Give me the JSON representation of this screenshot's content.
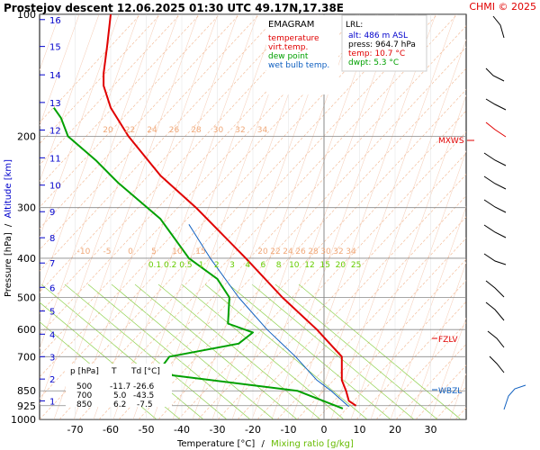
{
  "header": {
    "title": "Prostejov   descent   12.06.2025 01:30 UTC  49.17N,17.38E",
    "copyright": "CHMI © 2025"
  },
  "legend": {
    "title": "EMAGRAM",
    "items": [
      {
        "label": "temperature",
        "color": "#e00000"
      },
      {
        "label": "virt.temp.",
        "color": "#e00000"
      },
      {
        "label": "dew point",
        "color": "#00a000"
      },
      {
        "label": "wet bulb temp.",
        "color": "#1060c0"
      }
    ]
  },
  "lrl": {
    "title": "LRL:",
    "alt": "alt: 486 m ASL",
    "press": "press: 964.7 hPa",
    "temp": "temp: 10.7 °C",
    "dwpt": "dwpt: 5.3 °C"
  },
  "markers": {
    "mxws": "MXWS",
    "fzlv": "FZLV",
    "wbzl": "WBZL"
  },
  "table": {
    "headers": [
      "p [hPa]",
      "T",
      "Td [°C]"
    ],
    "rows": [
      [
        "500",
        "-11.7",
        "-26.6"
      ],
      [
        "700",
        "5.0",
        "-43.5"
      ],
      [
        "850",
        "6.2",
        "-7.5"
      ]
    ]
  },
  "axes": {
    "ylabel_pressure": "Pressure [hPa]",
    "ylabel_sep": "/",
    "ylabel_altitude": "Altitude [km]",
    "xlabel_temp": "Temperature [°C]",
    "xlabel_sep": "/",
    "xlabel_mixing": "Mixing ratio [g/kg]"
  },
  "chart_data": {
    "type": "line",
    "title": "Prostejov   descent   12.06.2025 01:30 UTC  49.17N,17.38E",
    "xlabel": "Temperature [°C] / Mixing ratio [g/kg]",
    "ylabel": "Pressure [hPa] / Altitude [km]",
    "xlim": [
      -80,
      40
    ],
    "x_ticks": [
      "-70",
      "-60",
      "-50",
      "-40",
      "-30",
      "-20",
      "-10",
      "0",
      "10",
      "20",
      "30"
    ],
    "y_scale": "log",
    "ylim": [
      1000,
      100
    ],
    "pressure_ticks": [
      "100",
      "200",
      "300",
      "400",
      "500",
      "600",
      "700",
      "850",
      "925",
      "1000"
    ],
    "altitude_ticks": [
      "1",
      "2",
      "3",
      "4",
      "5",
      "6",
      "7",
      "8",
      "9",
      "10",
      "11",
      "12",
      "13",
      "14",
      "15",
      "16"
    ],
    "mixing_ratio_labels": [
      "0.1",
      "0.2",
      "0.5",
      "1",
      "2",
      "3",
      "4",
      "6",
      "8",
      "10",
      "12",
      "15",
      "20",
      "25"
    ],
    "dry_adiabat_labels_200": [
      "20",
      "22",
      "24",
      "26",
      "28",
      "30",
      "32",
      "34"
    ],
    "dry_adiabat_labels_400": [
      "-10",
      "-5",
      "0",
      "5",
      "10",
      "15",
      "20",
      "22",
      "24",
      "26",
      "28",
      "30",
      "32",
      "34"
    ],
    "series": [
      {
        "name": "temperature",
        "color": "#e00000",
        "points": [
          [
            9,
            925
          ],
          [
            7,
            900
          ],
          [
            6.2,
            850
          ],
          [
            5,
            800
          ],
          [
            5,
            700
          ],
          [
            -2,
            600
          ],
          [
            -11.7,
            500
          ],
          [
            -22,
            400
          ],
          [
            -36,
            300
          ],
          [
            -46,
            250
          ],
          [
            -55,
            200
          ],
          [
            -60,
            170
          ],
          [
            -62,
            150
          ],
          [
            -62,
            140
          ],
          [
            -61,
            120
          ],
          [
            -60,
            100
          ]
        ]
      },
      {
        "name": "dew point",
        "color": "#00a000",
        "points": [
          [
            5.3,
            940
          ],
          [
            -7.5,
            850
          ],
          [
            -47,
            770
          ],
          [
            -43.5,
            700
          ],
          [
            -24,
            650
          ],
          [
            -20,
            610
          ],
          [
            -27,
            580
          ],
          [
            -26.6,
            500
          ],
          [
            -30,
            450
          ],
          [
            -38,
            400
          ],
          [
            -46,
            320
          ],
          [
            -58,
            260
          ],
          [
            -64,
            230
          ],
          [
            -72,
            200
          ],
          [
            -74,
            180
          ],
          [
            -76,
            170
          ]
        ]
      },
      {
        "name": "wet bulb temp.",
        "color": "#1060c0",
        "points": [
          [
            7,
            930
          ],
          [
            2,
            850
          ],
          [
            -2,
            800
          ],
          [
            -8,
            700
          ],
          [
            -16,
            600
          ],
          [
            -24,
            500
          ],
          [
            -32,
            400
          ],
          [
            -38,
            330
          ]
        ]
      }
    ]
  }
}
